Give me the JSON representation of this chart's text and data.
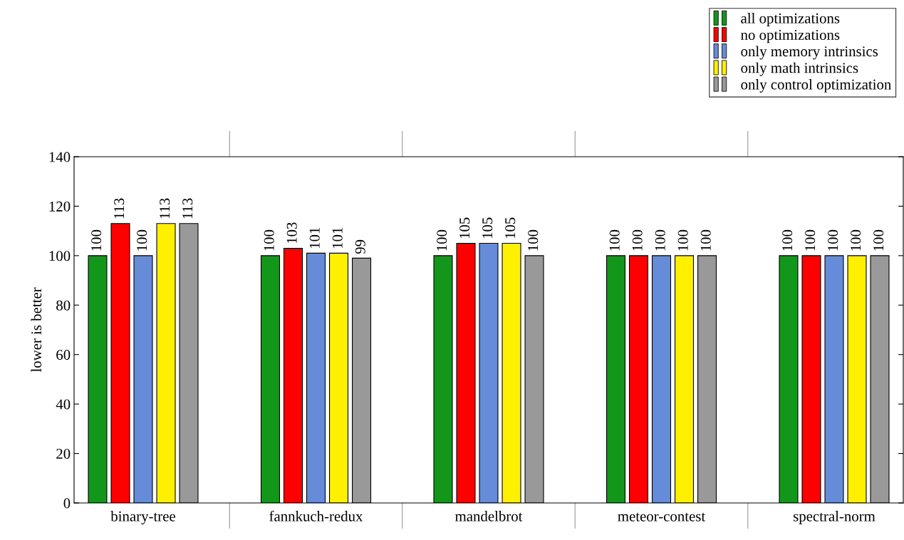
{
  "chart_data": {
    "type": "bar",
    "ylabel": "lower is better",
    "categories": [
      "binary-tree",
      "fannkuch-redux",
      "mandelbrot",
      "meteor-contest",
      "spectral-norm"
    ],
    "series": [
      {
        "name": "all optimizations",
        "color": "#12971a",
        "values": [
          100,
          100,
          100,
          100,
          100
        ]
      },
      {
        "name": "no optimizations",
        "color": "#ff0000",
        "values": [
          113,
          103,
          105,
          100,
          100
        ]
      },
      {
        "name": "only memory intrinsics",
        "color": "#668cd9",
        "values": [
          100,
          101,
          105,
          100,
          100
        ]
      },
      {
        "name": "only math intrinsics",
        "color": "#fff000",
        "values": [
          113,
          101,
          105,
          100,
          100
        ]
      },
      {
        "name": "only control optimization",
        "color": "#999999",
        "values": [
          113,
          99,
          100,
          100,
          100
        ]
      }
    ],
    "ylim": [
      0,
      140
    ],
    "yticks": [
      0,
      20,
      40,
      60,
      80,
      100,
      120,
      140
    ],
    "data_labels": true,
    "grid": false,
    "legend": "top right"
  }
}
